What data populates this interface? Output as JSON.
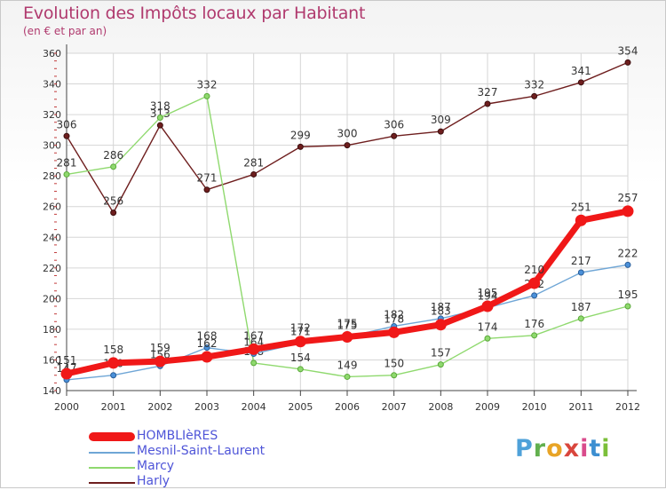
{
  "title": "Evolution des Impôts locaux par Habitant",
  "subtitle": "(en € et par an)",
  "logo": {
    "p": "P",
    "r": "r",
    "o": "o",
    "x": "x",
    "i1": "i",
    "t": "t",
    "i2": "i"
  },
  "chart_data": {
    "type": "line",
    "title": "Evolution des Impôts locaux par Habitant",
    "subtitle": "(en € et par an)",
    "xlabel": "",
    "ylabel": "",
    "x": [
      "2000",
      "2001",
      "2002",
      "2003",
      "2004",
      "2005",
      "2006",
      "2007",
      "2008",
      "2009",
      "2010",
      "2011",
      "2012"
    ],
    "ylim": [
      140,
      360
    ],
    "yticks": [
      140,
      160,
      180,
      200,
      220,
      240,
      260,
      280,
      300,
      320,
      340,
      360
    ],
    "grid": true,
    "legend_position": "bottom-left",
    "series": [
      {
        "key": "harly",
        "name": "Harly",
        "color": "#6e1e1e",
        "values": [
          306,
          256,
          313,
          271,
          281,
          299,
          300,
          306,
          309,
          327,
          332,
          341,
          354
        ],
        "labels": [
          "306",
          "256",
          "313",
          "271",
          "281",
          "299",
          "300",
          "306",
          "309",
          "327",
          "332",
          "341",
          "354"
        ]
      },
      {
        "key": "marcy",
        "name": "Marcy",
        "color": "#8fd96e",
        "values": [
          281,
          286,
          318,
          332,
          158,
          154,
          149,
          150,
          157,
          174,
          176,
          187,
          195
        ],
        "labels": [
          "281",
          "286",
          "318",
          "332",
          "158",
          "154",
          "149",
          "150",
          "157",
          "174",
          "176",
          "187",
          "195"
        ]
      },
      {
        "key": "mesnil",
        "name": "Mesnil-Saint-Laurent",
        "color": "#6fa6d6",
        "values": [
          147,
          150,
          156,
          168,
          164,
          171,
          175,
          182,
          187,
          194,
          202,
          217,
          222
        ],
        "labels": [
          "147",
          "150",
          "156",
          "168",
          "164",
          "171",
          "175",
          "182",
          "187",
          "194",
          "202",
          "217",
          "222"
        ]
      },
      {
        "key": "hombl",
        "name": "HOMBLIèRES",
        "color": "#f01818",
        "values": [
          151,
          158,
          159,
          162,
          167,
          172,
          175,
          178,
          183,
          195,
          210,
          251,
          257
        ],
        "labels": [
          "151",
          "158",
          "159",
          "162",
          "167",
          "172",
          "175",
          "178",
          "183",
          "195",
          "210",
          "251",
          "257"
        ]
      }
    ],
    "legend_order": [
      "hombl",
      "mesnil",
      "marcy",
      "harly"
    ]
  }
}
